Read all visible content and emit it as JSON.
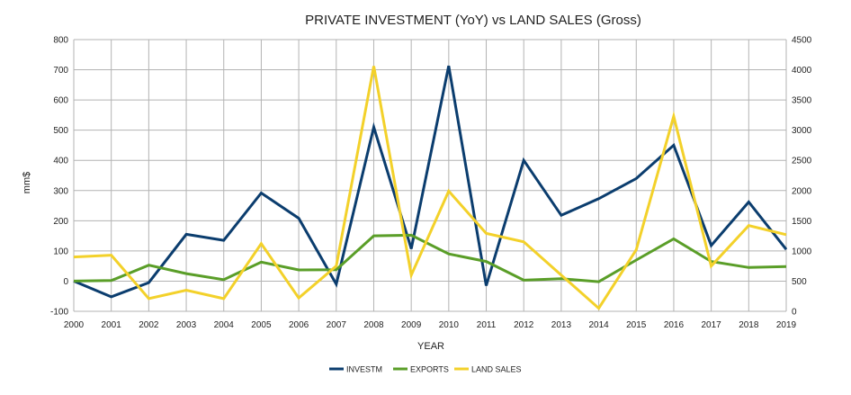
{
  "chart_data": {
    "type": "line",
    "title": "PRIVATE INVESTMENT (YoY) vs LAND SALES (Gross)",
    "xlabel": "YEAR",
    "ylabel": "mm$",
    "ylim": [
      -100,
      800
    ],
    "y2lim": [
      0,
      4500
    ],
    "yticks": [
      "-100",
      "0",
      "100",
      "200",
      "300",
      "400",
      "500",
      "600",
      "700",
      "800"
    ],
    "y2ticks": [
      "0",
      "500",
      "1000",
      "1500",
      "2000",
      "2500",
      "3000",
      "3500",
      "4000",
      "4500"
    ],
    "grid": true,
    "legend": "bottom",
    "x": [
      "2000",
      "2001",
      "2002",
      "2003",
      "2004",
      "2005",
      "2006",
      "2007",
      "2008",
      "2009",
      "2010",
      "2011",
      "2012",
      "2013",
      "2014",
      "2015",
      "2016",
      "2017",
      "2018",
      "2019"
    ],
    "series": [
      {
        "name": "INVESTM",
        "color": "#0b3d6e",
        "axis": "left",
        "values": [
          0,
          -52,
          -5,
          155,
          135,
          292,
          208,
          -10,
          510,
          107,
          713,
          -15,
          400,
          218,
          273,
          340,
          450,
          118,
          262,
          105
        ]
      },
      {
        "name": "EXPORTS",
        "color": "#5a9e28",
        "axis": "left",
        "values": [
          0,
          2,
          53,
          25,
          5,
          63,
          37,
          38,
          150,
          152,
          90,
          65,
          3,
          8,
          -2,
          70,
          140,
          65,
          45,
          48
        ]
      },
      {
        "name": "LAND SALES",
        "color": "#f3d12a",
        "axis": "right",
        "values": [
          900,
          930,
          210,
          350,
          210,
          1120,
          220,
          750,
          4060,
          600,
          1990,
          1290,
          1150,
          600,
          50,
          1020,
          3230,
          750,
          1420,
          1270
        ]
      }
    ]
  }
}
